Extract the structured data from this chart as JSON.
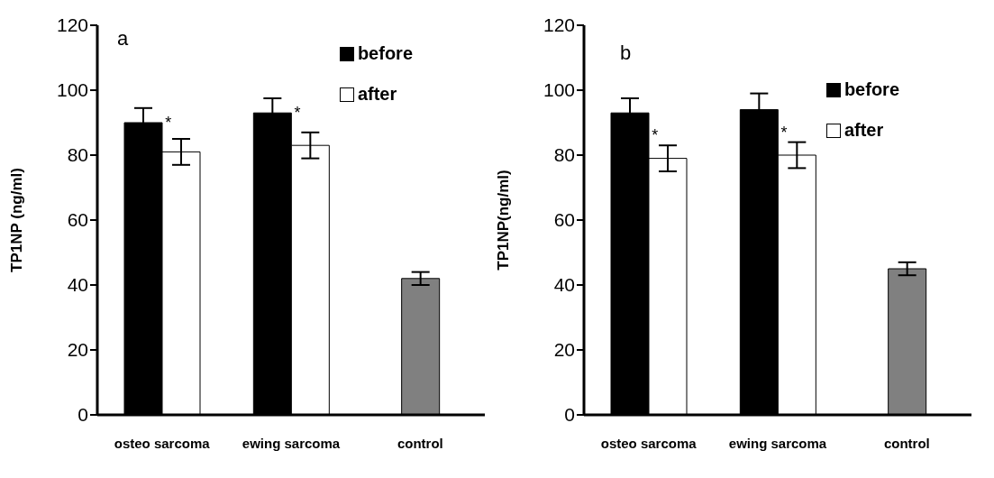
{
  "chart_data": [
    {
      "type": "bar",
      "ylabel": "TP1NP (ng/ml)",
      "categories": [
        "osteo sarcoma",
        "ewing sarcoma",
        "control"
      ],
      "series": [
        {
          "name": "before",
          "color": "#000000",
          "values": [
            90,
            93,
            null
          ],
          "errors": [
            4.5,
            4.5,
            null
          ]
        },
        {
          "name": "after",
          "color": "#ffffff",
          "values": [
            81,
            83,
            null
          ],
          "errors": [
            4,
            4,
            null
          ]
        },
        {
          "color": "#808080",
          "values": [
            null,
            null,
            42
          ],
          "errors": [
            null,
            null,
            2
          ]
        }
      ],
      "ylim": [
        0,
        120
      ],
      "yticks": [
        0,
        20,
        40,
        60,
        80,
        100,
        120
      ],
      "legend": "top right",
      "grid": false,
      "annotations": [
        "a",
        {
          "text": "*",
          "x": "osteo sarcoma",
          "y": 90
        },
        {
          "text": "*",
          "x": "ewing sarcoma",
          "y": 93
        }
      ]
    },
    {
      "type": "bar",
      "ylabel": "TP1NP(ng/ml)",
      "categories": [
        "osteo sarcoma",
        "ewing sarcoma",
        "control"
      ],
      "series": [
        {
          "name": "before",
          "color": "#000000",
          "values": [
            93,
            94,
            null
          ],
          "errors": [
            4.5,
            5,
            null
          ]
        },
        {
          "name": "after",
          "color": "#ffffff",
          "values": [
            79,
            80,
            null
          ],
          "errors": [
            4,
            4,
            null
          ]
        },
        {
          "color": "#808080",
          "values": [
            null,
            null,
            45
          ],
          "errors": [
            null,
            null,
            2
          ]
        }
      ],
      "ylim": [
        0,
        120
      ],
      "yticks": [
        0,
        20,
        40,
        60,
        80,
        100,
        120
      ],
      "legend": "top right",
      "grid": false,
      "annotations": [
        "b",
        {
          "text": "*",
          "x": "osteo sarcoma",
          "y": 86
        },
        {
          "text": "*",
          "x": "ewing sarcoma",
          "y": 87
        }
      ]
    }
  ]
}
